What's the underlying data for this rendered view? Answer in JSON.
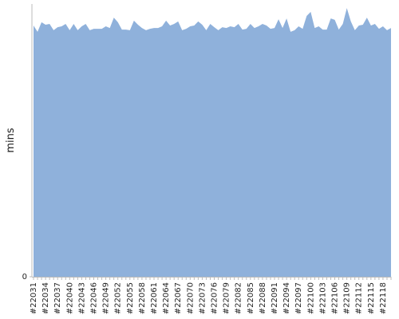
{
  "chart_data": {
    "type": "area",
    "ylabel": "mins",
    "color": "#8fb1db",
    "ylim": [
      0,
      100
    ],
    "yticks": [
      0
    ],
    "categories": [
      "#22031",
      null,
      null,
      "#22034",
      null,
      null,
      "#22037",
      null,
      null,
      "#22040",
      null,
      null,
      "#22043",
      null,
      null,
      "#22046",
      null,
      null,
      "#22049",
      null,
      null,
      "#22052",
      null,
      null,
      "#22055",
      null,
      null,
      "#22058",
      null,
      null,
      "#22061",
      null,
      null,
      "#22064",
      null,
      null,
      "#22067",
      null,
      null,
      "#22070",
      null,
      null,
      "#22073",
      null,
      null,
      "#22076",
      null,
      null,
      "#22079",
      null,
      null,
      "#22082",
      null,
      null,
      "#22085",
      null,
      null,
      "#22088",
      null,
      null,
      "#22091",
      null,
      null,
      "#22094",
      null,
      null,
      "#22097",
      null,
      null,
      "#22100",
      null,
      null,
      "#22103",
      null,
      null,
      "#22106",
      null,
      null,
      "#22109",
      null,
      null,
      "#22112",
      null,
      null,
      "#22115",
      null,
      null,
      "#22118",
      null,
      null
    ],
    "values": [
      92.1,
      89.8,
      93.3,
      92.4,
      92.7,
      90.4,
      91.5,
      91.8,
      92.7,
      90.4,
      92.7,
      90.4,
      91.8,
      92.7,
      90.4,
      90.9,
      90.9,
      90.9,
      91.8,
      91.2,
      95.0,
      93.3,
      90.6,
      90.6,
      90.4,
      93.9,
      92.4,
      91.2,
      90.4,
      90.9,
      91.2,
      91.2,
      91.8,
      93.9,
      92.1,
      92.7,
      93.6,
      90.4,
      90.9,
      91.8,
      92.1,
      93.6,
      92.4,
      90.4,
      92.7,
      91.5,
      90.4,
      91.5,
      91.2,
      91.8,
      91.5,
      92.7,
      90.6,
      90.9,
      92.7,
      91.2,
      91.8,
      92.7,
      92.1,
      90.9,
      91.2,
      94.4,
      91.2,
      94.7,
      89.8,
      90.4,
      91.8,
      90.9,
      95.6,
      97.1,
      91.2,
      91.8,
      90.6,
      90.6,
      94.7,
      94.2,
      90.6,
      92.7,
      98.5,
      93.6,
      90.4,
      92.1,
      92.4,
      95.0,
      92.1,
      92.7,
      90.9,
      91.8,
      90.4,
      91.2
    ]
  }
}
